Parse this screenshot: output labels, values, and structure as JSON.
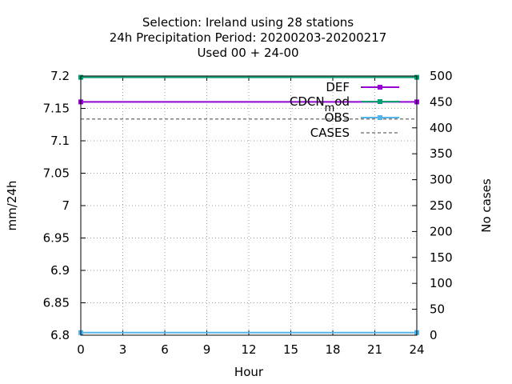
{
  "chart_data": {
    "type": "line",
    "title_lines": [
      "Selection: Ireland using    28 stations",
      "24h Precipitation   Period: 20200203-20200217",
      "Used  00 + 24-00"
    ],
    "xlabel": "Hour",
    "ylabel": "mm/24h",
    "y2label": "No cases",
    "x_ticks": [
      0,
      3,
      6,
      9,
      12,
      15,
      18,
      21,
      24
    ],
    "xlim": [
      0,
      24
    ],
    "y_ticks": [
      "6.8",
      "6.85",
      "6.9",
      "6.95",
      "7",
      "7.05",
      "7.1",
      "7.15",
      "7.2"
    ],
    "ylim": [
      6.8,
      7.2
    ],
    "y2_ticks": [
      "0",
      "50",
      "100",
      "150",
      "200",
      "250",
      "300",
      "350",
      "400",
      "450",
      "500"
    ],
    "y2lim": [
      0,
      500
    ],
    "grid": true,
    "legend_position": "top-right",
    "series": [
      {
        "name": "DEF",
        "axis": "y",
        "color": "#9400d3",
        "dashed": false,
        "marker": "square",
        "x": [
          0,
          24
        ],
        "values": [
          7.16,
          7.16
        ]
      },
      {
        "name": "CDCN_mod",
        "axis": "y",
        "color": "#009e73",
        "dashed": false,
        "marker": "square",
        "x": [
          0,
          24
        ],
        "values": [
          7.198,
          7.198
        ]
      },
      {
        "name": "OBS",
        "axis": "y",
        "color": "#56b4e9",
        "dashed": false,
        "marker": "square",
        "x": [
          0,
          24
        ],
        "values": [
          6.804,
          6.804
        ]
      },
      {
        "name": "CASES",
        "axis": "y2",
        "color": "#808080",
        "dashed": true,
        "marker": "none",
        "x": [
          0,
          24
        ],
        "values": [
          417,
          417
        ]
      }
    ],
    "legend": {
      "def": "DEF",
      "cdcn_main": "CDCN",
      "cdcn_sub": "m",
      "cdcn_rest": "od",
      "obs": "OBS",
      "cases": "CASES"
    }
  }
}
